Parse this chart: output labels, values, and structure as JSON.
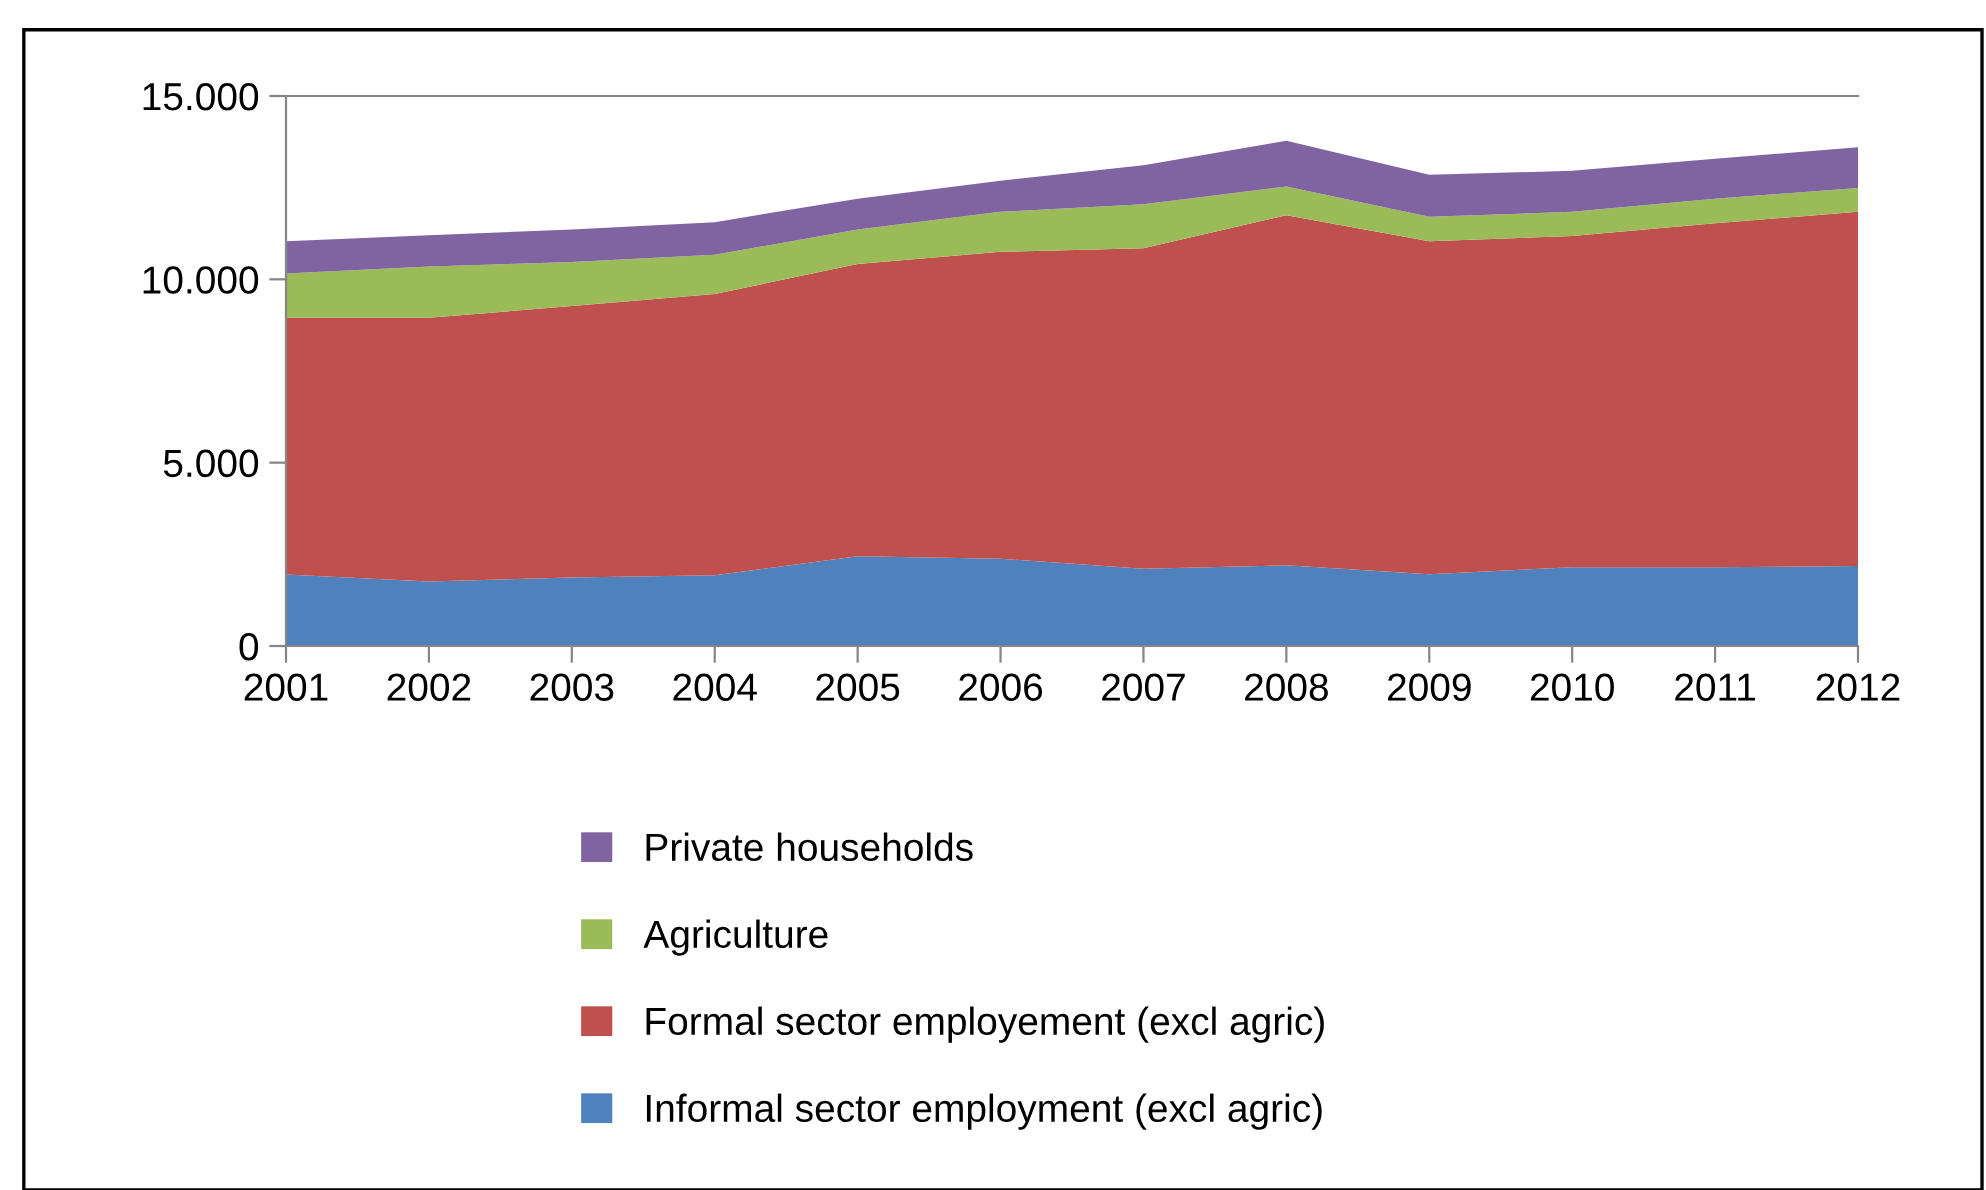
{
  "chart_data": {
    "type": "area",
    "stacked": true,
    "categories": [
      "2001",
      "2002",
      "2003",
      "2004",
      "2005",
      "2006",
      "2007",
      "2008",
      "2009",
      "2010",
      "2011",
      "2012"
    ],
    "series": [
      {
        "name": "Informal sector employment (excl agric)",
        "color": "#4f81bd",
        "values": [
          1950,
          1760,
          1870,
          1930,
          2450,
          2380,
          2110,
          2200,
          1960,
          2150,
          2150,
          2180
        ]
      },
      {
        "name": "Formal sector employement (excl agric)",
        "color": "#c0504d",
        "values": [
          7000,
          7190,
          7400,
          7670,
          7970,
          8370,
          8740,
          9550,
          9080,
          9030,
          9380,
          9660
        ]
      },
      {
        "name": "Agriculture",
        "color": "#9bbb59",
        "values": [
          1210,
          1400,
          1200,
          1070,
          940,
          1090,
          1200,
          780,
          670,
          660,
          670,
          650
        ]
      },
      {
        "name": "Private households",
        "color": "#8064a2",
        "values": [
          880,
          850,
          890,
          890,
          840,
          850,
          1060,
          1250,
          1140,
          1120,
          1090,
          1110
        ]
      }
    ],
    "ylim": [
      0,
      15000
    ],
    "yticks": [
      0,
      {
        "value": 5000,
        "label": "5.000"
      },
      {
        "value": 10000,
        "label": "10.000"
      },
      {
        "value": 15000,
        "label": "15.000"
      }
    ],
    "grid": false,
    "legend": "bottom"
  }
}
